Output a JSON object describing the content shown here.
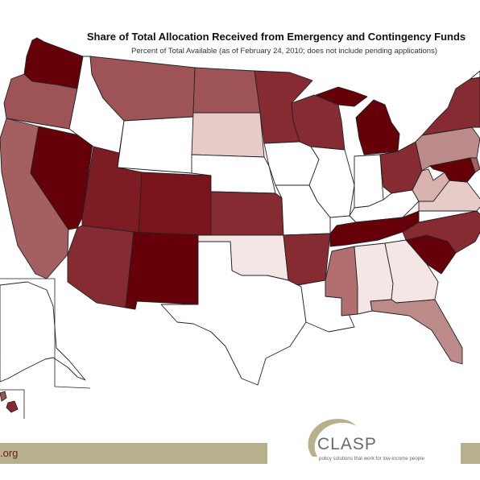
{
  "header": {
    "title": "Share of Total Allocation Received from Emergency and Contingency Funds",
    "subtitle": "Percent of Total Available (as of February 24, 2010; does not include pending applications)"
  },
  "footer": {
    "org_text": ".org",
    "logo_name": "CLASP",
    "logo_tagline": "policy solutions that work for low-income people"
  },
  "colors": {
    "darkest": "#650008",
    "dark": "#862b31",
    "medium_dark": "#9e5456",
    "medium": "#bd8a8a",
    "light": "#e6cbc8",
    "lightest": "#f3e6e4",
    "none": "#ffffff",
    "footer_bar": "#b7b08c"
  }
}
